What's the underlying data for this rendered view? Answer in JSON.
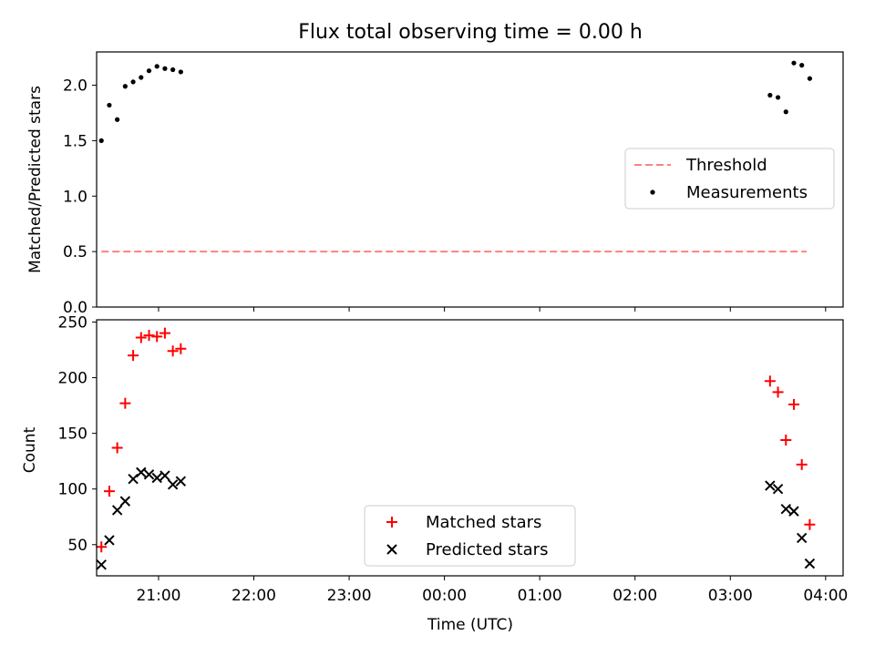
{
  "figure": {
    "title": "Flux total observing time = 0.00 h"
  },
  "chart_data": [
    {
      "type": "scatter",
      "ylabel": "Matched/Predicted stars",
      "xlim": [
        "20:21",
        "04:11"
      ],
      "ylim": [
        0,
        2.3
      ],
      "yticks": [
        0.0,
        0.5,
        1.0,
        1.5,
        2.0
      ],
      "ytick_labels": [
        "0.0",
        "0.5",
        "1.0",
        "1.5",
        "2.0"
      ],
      "legend_position": "center-right",
      "threshold": {
        "name": "Threshold",
        "value": 0.5,
        "x_start": "20:24",
        "x_end": "03:48",
        "color": "#ff8080",
        "style": "dashed"
      },
      "series": [
        {
          "name": "Measurements",
          "marker": "dot",
          "color": "#000000",
          "x": [
            "20:24",
            "20:29",
            "20:34",
            "20:39",
            "20:44",
            "20:49",
            "20:54",
            "20:59",
            "21:04",
            "21:09",
            "21:14",
            "03:25",
            "03:30",
            "03:35",
            "03:40",
            "03:45",
            "03:50"
          ],
          "y": [
            1.5,
            1.82,
            1.69,
            1.99,
            2.03,
            2.07,
            2.13,
            2.17,
            2.15,
            2.14,
            2.12,
            1.91,
            1.89,
            1.76,
            2.2,
            2.18,
            2.06
          ]
        }
      ]
    },
    {
      "type": "scatter",
      "xlabel": "Time (UTC)",
      "ylabel": "Count",
      "xlim": [
        "20:21",
        "04:11"
      ],
      "ylim": [
        22,
        252
      ],
      "yticks": [
        50,
        100,
        150,
        200,
        250
      ],
      "ytick_labels": [
        "50",
        "100",
        "150",
        "200",
        "250"
      ],
      "xticks": [
        "21:00",
        "22:00",
        "23:00",
        "00:00",
        "01:00",
        "02:00",
        "03:00",
        "04:00"
      ],
      "xtick_labels": [
        "21:00",
        "22:00",
        "23:00",
        "00:00",
        "01:00",
        "02:00",
        "03:00",
        "04:00"
      ],
      "legend_position": "lower-center",
      "series": [
        {
          "name": "Matched stars",
          "marker": "plus",
          "color": "#ff0000",
          "x": [
            "20:24",
            "20:29",
            "20:34",
            "20:39",
            "20:44",
            "20:49",
            "20:54",
            "20:59",
            "21:04",
            "21:09",
            "21:14",
            "03:25",
            "03:30",
            "03:35",
            "03:40",
            "03:45",
            "03:50"
          ],
          "y": [
            48,
            98,
            137,
            177,
            220,
            236,
            238,
            237,
            240,
            224,
            226,
            197,
            187,
            144,
            176,
            122,
            68
          ]
        },
        {
          "name": "Predicted stars",
          "marker": "x",
          "color": "#000000",
          "x": [
            "20:24",
            "20:29",
            "20:34",
            "20:39",
            "20:44",
            "20:49",
            "20:54",
            "20:59",
            "21:04",
            "21:09",
            "21:14",
            "03:25",
            "03:30",
            "03:35",
            "03:40",
            "03:45",
            "03:50"
          ],
          "y": [
            32,
            54,
            81,
            89,
            109,
            115,
            113,
            110,
            112,
            104,
            107,
            103,
            100,
            82,
            80,
            56,
            33
          ]
        }
      ]
    }
  ]
}
